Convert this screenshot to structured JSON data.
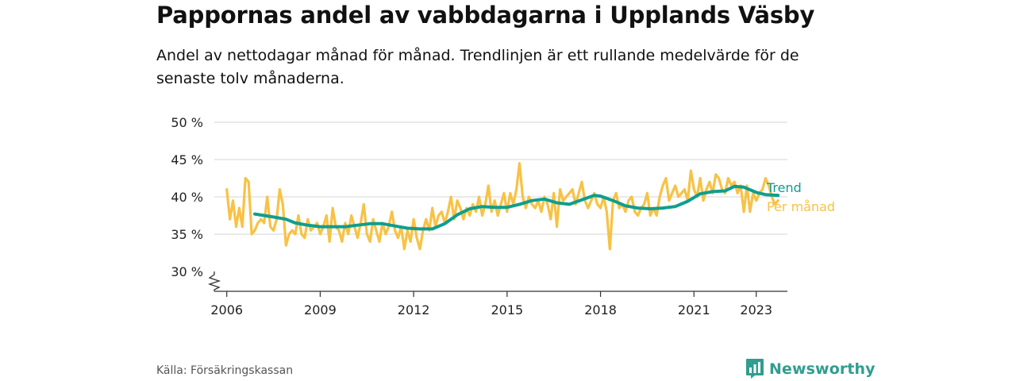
{
  "title": "Pappornas andel av vabbdagarna i Upplands Väsby",
  "subtitle": "Andel av nettodagar månad för månad. Trendlinjen är ett rullande medelvärde för de senaste tolv månaderna.",
  "source": "Källa: Försäkringskassan",
  "brand": "Newsworthy",
  "colors": {
    "trend": "#0f9e8e",
    "monthly": "#f7c245",
    "grid": "#dddddd",
    "axis": "#333333",
    "brand": "#2f9e8f"
  },
  "icons": {
    "axis_break": "zigzag-break-icon",
    "brand_logo": "bar-chart-speech-icon"
  },
  "chart_data": {
    "type": "line",
    "ylim": [
      30,
      50
    ],
    "xlim": [
      2005.6,
      2024.0
    ],
    "y_ticks": [
      {
        "value": 30,
        "label": "30 %"
      },
      {
        "value": 35,
        "label": "35 %"
      },
      {
        "value": 40,
        "label": "40 %"
      },
      {
        "value": 45,
        "label": "45 %"
      },
      {
        "value": 50,
        "label": "50 %"
      }
    ],
    "x_ticks": [
      {
        "value": 2006,
        "label": "2006"
      },
      {
        "value": 2009,
        "label": "2009"
      },
      {
        "value": 2012,
        "label": "2012"
      },
      {
        "value": 2015,
        "label": "2015"
      },
      {
        "value": 2018,
        "label": "2018"
      },
      {
        "value": 2021,
        "label": "2021"
      },
      {
        "value": 2023,
        "label": "2023"
      }
    ],
    "grid": true,
    "axis_break": true,
    "series": [
      {
        "name": "Per månad",
        "color": "#f7c245",
        "points": [
          [
            2006.0,
            41.0
          ],
          [
            2006.1,
            37.0
          ],
          [
            2006.2,
            39.5
          ],
          [
            2006.3,
            36.0
          ],
          [
            2006.4,
            38.5
          ],
          [
            2006.5,
            36.0
          ],
          [
            2006.6,
            42.5
          ],
          [
            2006.7,
            42.0
          ],
          [
            2006.8,
            35.0
          ],
          [
            2006.9,
            35.5
          ],
          [
            2007.0,
            36.5
          ],
          [
            2007.1,
            37.0
          ],
          [
            2007.2,
            36.5
          ],
          [
            2007.3,
            40.0
          ],
          [
            2007.4,
            36.0
          ],
          [
            2007.5,
            35.5
          ],
          [
            2007.6,
            37.0
          ],
          [
            2007.7,
            41.0
          ],
          [
            2007.8,
            39.0
          ],
          [
            2007.9,
            33.5
          ],
          [
            2008.0,
            35.0
          ],
          [
            2008.1,
            35.5
          ],
          [
            2008.2,
            35.0
          ],
          [
            2008.3,
            37.5
          ],
          [
            2008.4,
            35.0
          ],
          [
            2008.5,
            34.5
          ],
          [
            2008.6,
            37.0
          ],
          [
            2008.7,
            35.5
          ],
          [
            2008.8,
            36.0
          ],
          [
            2008.9,
            36.5
          ],
          [
            2009.0,
            35.0
          ],
          [
            2009.1,
            36.0
          ],
          [
            2009.2,
            37.5
          ],
          [
            2009.3,
            34.0
          ],
          [
            2009.4,
            38.5
          ],
          [
            2009.5,
            36.0
          ],
          [
            2009.6,
            35.5
          ],
          [
            2009.7,
            34.0
          ],
          [
            2009.8,
            36.5
          ],
          [
            2009.9,
            35.0
          ],
          [
            2010.0,
            37.5
          ],
          [
            2010.1,
            36.0
          ],
          [
            2010.2,
            34.5
          ],
          [
            2010.3,
            36.5
          ],
          [
            2010.4,
            39.0
          ],
          [
            2010.5,
            35.0
          ],
          [
            2010.6,
            34.0
          ],
          [
            2010.7,
            37.0
          ],
          [
            2010.8,
            35.5
          ],
          [
            2010.9,
            34.0
          ],
          [
            2011.0,
            36.5
          ],
          [
            2011.1,
            35.0
          ],
          [
            2011.2,
            36.0
          ],
          [
            2011.3,
            38.0
          ],
          [
            2011.4,
            35.5
          ],
          [
            2011.5,
            34.5
          ],
          [
            2011.6,
            36.0
          ],
          [
            2011.7,
            33.0
          ],
          [
            2011.8,
            35.5
          ],
          [
            2011.9,
            34.0
          ],
          [
            2012.0,
            37.0
          ],
          [
            2012.1,
            34.5
          ],
          [
            2012.2,
            33.0
          ],
          [
            2012.3,
            35.5
          ],
          [
            2012.4,
            37.0
          ],
          [
            2012.5,
            35.5
          ],
          [
            2012.6,
            38.5
          ],
          [
            2012.7,
            36.0
          ],
          [
            2012.8,
            37.5
          ],
          [
            2012.9,
            38.0
          ],
          [
            2013.0,
            36.5
          ],
          [
            2013.1,
            38.0
          ],
          [
            2013.2,
            40.0
          ],
          [
            2013.3,
            37.0
          ],
          [
            2013.4,
            39.5
          ],
          [
            2013.5,
            38.5
          ],
          [
            2013.6,
            37.0
          ],
          [
            2013.7,
            38.5
          ],
          [
            2013.8,
            37.5
          ],
          [
            2013.9,
            39.0
          ],
          [
            2014.0,
            38.0
          ],
          [
            2014.1,
            40.0
          ],
          [
            2014.2,
            37.5
          ],
          [
            2014.3,
            39.0
          ],
          [
            2014.4,
            41.5
          ],
          [
            2014.5,
            38.0
          ],
          [
            2014.6,
            39.5
          ],
          [
            2014.7,
            37.5
          ],
          [
            2014.8,
            39.0
          ],
          [
            2014.9,
            40.5
          ],
          [
            2015.0,
            38.0
          ],
          [
            2015.1,
            40.5
          ],
          [
            2015.2,
            39.0
          ],
          [
            2015.3,
            41.0
          ],
          [
            2015.4,
            44.5
          ],
          [
            2015.5,
            40.0
          ],
          [
            2015.6,
            38.5
          ],
          [
            2015.7,
            40.0
          ],
          [
            2015.8,
            39.0
          ],
          [
            2015.9,
            38.5
          ],
          [
            2016.0,
            39.5
          ],
          [
            2016.1,
            38.0
          ],
          [
            2016.2,
            40.0
          ],
          [
            2016.3,
            39.0
          ],
          [
            2016.4,
            37.0
          ],
          [
            2016.5,
            40.5
          ],
          [
            2016.6,
            36.0
          ],
          [
            2016.7,
            41.0
          ],
          [
            2016.8,
            39.5
          ],
          [
            2016.9,
            40.0
          ],
          [
            2017.0,
            40.5
          ],
          [
            2017.1,
            41.0
          ],
          [
            2017.2,
            39.0
          ],
          [
            2017.3,
            40.5
          ],
          [
            2017.4,
            42.0
          ],
          [
            2017.5,
            39.5
          ],
          [
            2017.6,
            38.5
          ],
          [
            2017.7,
            39.5
          ],
          [
            2017.8,
            40.5
          ],
          [
            2017.9,
            39.0
          ],
          [
            2018.0,
            38.5
          ],
          [
            2018.1,
            40.0
          ],
          [
            2018.2,
            38.0
          ],
          [
            2018.3,
            33.0
          ],
          [
            2018.4,
            39.5
          ],
          [
            2018.5,
            40.5
          ],
          [
            2018.6,
            38.5
          ],
          [
            2018.7,
            39.0
          ],
          [
            2018.8,
            38.0
          ],
          [
            2018.9,
            39.5
          ],
          [
            2019.0,
            40.0
          ],
          [
            2019.1,
            38.0
          ],
          [
            2019.2,
            37.5
          ],
          [
            2019.3,
            38.5
          ],
          [
            2019.4,
            39.0
          ],
          [
            2019.5,
            40.5
          ],
          [
            2019.6,
            37.5
          ],
          [
            2019.7,
            38.5
          ],
          [
            2019.8,
            37.5
          ],
          [
            2019.9,
            40.0
          ],
          [
            2020.0,
            41.5
          ],
          [
            2020.1,
            42.5
          ],
          [
            2020.2,
            39.5
          ],
          [
            2020.3,
            40.5
          ],
          [
            2020.4,
            41.5
          ],
          [
            2020.5,
            40.0
          ],
          [
            2020.6,
            40.5
          ],
          [
            2020.7,
            41.0
          ],
          [
            2020.8,
            39.5
          ],
          [
            2020.9,
            43.5
          ],
          [
            2021.0,
            41.0
          ],
          [
            2021.1,
            40.0
          ],
          [
            2021.2,
            42.5
          ],
          [
            2021.3,
            39.5
          ],
          [
            2021.4,
            41.0
          ],
          [
            2021.5,
            42.0
          ],
          [
            2021.6,
            40.5
          ],
          [
            2021.7,
            43.0
          ],
          [
            2021.8,
            42.5
          ],
          [
            2021.9,
            41.0
          ],
          [
            2022.0,
            40.5
          ],
          [
            2022.1,
            42.5
          ],
          [
            2022.2,
            41.5
          ],
          [
            2022.3,
            42.0
          ],
          [
            2022.4,
            40.5
          ],
          [
            2022.5,
            41.5
          ],
          [
            2022.6,
            38.0
          ],
          [
            2022.7,
            41.5
          ],
          [
            2022.8,
            38.0
          ],
          [
            2022.9,
            40.5
          ],
          [
            2023.0,
            39.5
          ],
          [
            2023.1,
            40.5
          ],
          [
            2023.2,
            41.0
          ],
          [
            2023.3,
            42.5
          ],
          [
            2023.4,
            41.5
          ],
          [
            2023.5,
            40.0
          ],
          [
            2023.6,
            39.0
          ],
          [
            2023.7,
            39.5
          ]
        ]
      },
      {
        "name": "Trend",
        "color": "#0f9e8e",
        "points": [
          [
            2006.9,
            37.7
          ],
          [
            2007.2,
            37.5
          ],
          [
            2007.5,
            37.3
          ],
          [
            2007.9,
            37.0
          ],
          [
            2008.2,
            36.5
          ],
          [
            2008.6,
            36.2
          ],
          [
            2009.0,
            36.0
          ],
          [
            2009.4,
            36.0
          ],
          [
            2009.8,
            36.0
          ],
          [
            2010.2,
            36.2
          ],
          [
            2010.6,
            36.4
          ],
          [
            2011.0,
            36.4
          ],
          [
            2011.4,
            36.1
          ],
          [
            2011.8,
            35.8
          ],
          [
            2012.2,
            35.7
          ],
          [
            2012.6,
            35.7
          ],
          [
            2013.0,
            36.4
          ],
          [
            2013.4,
            37.6
          ],
          [
            2013.8,
            38.4
          ],
          [
            2014.2,
            38.7
          ],
          [
            2014.6,
            38.6
          ],
          [
            2015.0,
            38.6
          ],
          [
            2015.4,
            39.0
          ],
          [
            2015.8,
            39.5
          ],
          [
            2016.2,
            39.7
          ],
          [
            2016.6,
            39.2
          ],
          [
            2017.0,
            39.0
          ],
          [
            2017.4,
            39.6
          ],
          [
            2017.8,
            40.2
          ],
          [
            2018.0,
            40.1
          ],
          [
            2018.4,
            39.5
          ],
          [
            2018.8,
            38.8
          ],
          [
            2019.2,
            38.5
          ],
          [
            2019.6,
            38.4
          ],
          [
            2020.0,
            38.5
          ],
          [
            2020.4,
            38.7
          ],
          [
            2020.8,
            39.4
          ],
          [
            2021.2,
            40.4
          ],
          [
            2021.6,
            40.7
          ],
          [
            2022.0,
            40.8
          ],
          [
            2022.3,
            41.4
          ],
          [
            2022.6,
            41.3
          ],
          [
            2023.0,
            40.6
          ],
          [
            2023.3,
            40.3
          ],
          [
            2023.7,
            40.2
          ]
        ]
      }
    ]
  }
}
